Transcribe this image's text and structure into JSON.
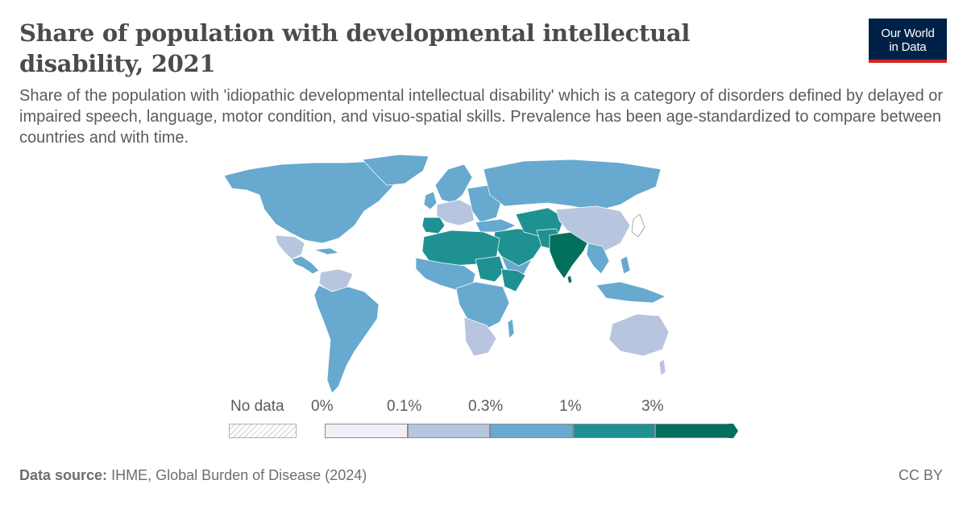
{
  "header": {
    "title": "Share of population with developmental intellectual disability, 2021",
    "subtitle": "Share of the population with 'idiopathic developmental intellectual disability' which is a category of disorders defined by delayed or impaired speech, language, motor condition, and visuo-spatial skills. Prevalence has been age-standardized to compare between countries and with time."
  },
  "logo": {
    "line1": "Our World",
    "line2": "in Data"
  },
  "legend": {
    "no_data_label": "No data",
    "ticks": [
      "0%",
      "0.1%",
      "0.3%",
      "1%",
      "3%"
    ],
    "bins": [
      {
        "from": "0%",
        "to": "0.1%",
        "color": "#f4eef6"
      },
      {
        "from": "0.1%",
        "to": "0.3%",
        "color": "#b8c5df"
      },
      {
        "from": "0.3%",
        "to": "1%",
        "color": "#67a9cf"
      },
      {
        "from": "1%",
        "to": "3%",
        "color": "#1f9192"
      },
      {
        "from": "3%",
        "to": "",
        "color": "#03705d"
      }
    ]
  },
  "colors": {
    "ocean": "#ffffff",
    "border": "#ffffff",
    "brand": "#002147",
    "brand_accent": "#ce261e"
  },
  "footer": {
    "source_label": "Data source:",
    "source_text": "IHME, Global Burden of Disease (2024)",
    "license": "CC BY"
  }
}
